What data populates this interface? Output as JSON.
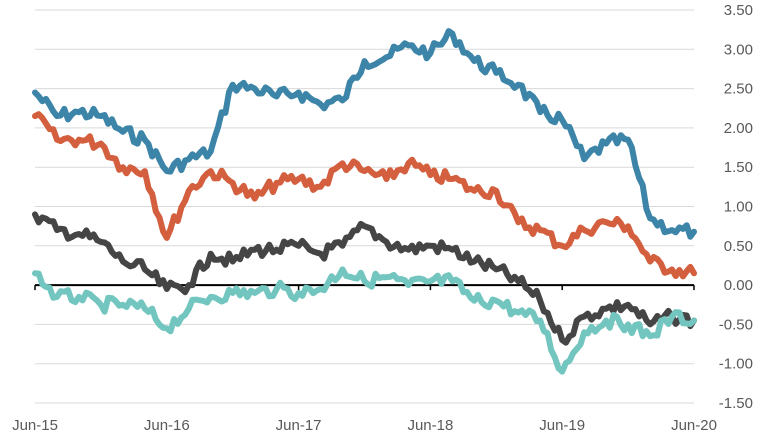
{
  "chart_data": {
    "type": "line",
    "title": "",
    "xlabel": "",
    "ylabel": "",
    "x_ticks": [
      "Jun-15",
      "Jun-16",
      "Jun-17",
      "Jun-18",
      "Jun-19",
      "Jun-20"
    ],
    "y_ticks": [
      "3.50",
      "3.00",
      "2.50",
      "2.00",
      "1.50",
      "1.00",
      "0.50",
      "0.00",
      "-0.50",
      "-1.00",
      "-1.50"
    ],
    "ylim": [
      -1.5,
      3.5
    ],
    "xlim": [
      "2015-06",
      "2020-06"
    ],
    "grid": "horizontal",
    "legend": "none",
    "x": [
      "2015-06",
      "2015-08",
      "2015-10",
      "2015-12",
      "2016-02",
      "2016-04",
      "2016-06",
      "2016-08",
      "2016-10",
      "2016-12",
      "2017-02",
      "2017-04",
      "2017-06",
      "2017-08",
      "2017-10",
      "2017-12",
      "2018-02",
      "2018-04",
      "2018-06",
      "2018-08",
      "2018-10",
      "2018-12",
      "2019-02",
      "2019-04",
      "2019-06",
      "2019-08",
      "2019-10",
      "2019-12",
      "2020-02",
      "2020-04",
      "2020-06"
    ],
    "series": [
      {
        "color": "#3d85a8",
        "values": [
          2.45,
          2.15,
          2.2,
          2.15,
          1.95,
          1.85,
          1.45,
          1.6,
          1.7,
          2.55,
          2.5,
          2.4,
          2.45,
          2.3,
          2.35,
          2.85,
          2.9,
          3.05,
          2.95,
          3.2,
          2.85,
          2.7,
          2.55,
          2.2,
          2.1,
          1.6,
          1.8,
          1.85,
          0.85,
          0.7,
          0.68
        ]
      },
      {
        "color": "#d45f3e",
        "values": [
          2.15,
          1.85,
          1.85,
          1.8,
          1.5,
          1.45,
          0.6,
          1.2,
          1.45,
          1.3,
          1.1,
          1.3,
          1.35,
          1.25,
          1.55,
          1.45,
          1.35,
          1.55,
          1.4,
          1.35,
          1.2,
          1.2,
          0.8,
          0.7,
          0.5,
          0.7,
          0.8,
          0.75,
          0.3,
          0.2,
          0.15
        ]
      },
      {
        "color": "#454545",
        "values": [
          0.9,
          0.7,
          0.65,
          0.55,
          0.3,
          0.2,
          -0.05,
          0.0,
          0.4,
          0.3,
          0.45,
          0.45,
          0.5,
          0.4,
          0.5,
          0.75,
          0.55,
          0.45,
          0.5,
          0.45,
          0.3,
          0.2,
          0.05,
          -0.2,
          -0.7,
          -0.4,
          -0.3,
          -0.25,
          -0.5,
          -0.4,
          -0.45
        ]
      },
      {
        "color": "#73c6c0",
        "values": [
          0.15,
          -0.15,
          -0.15,
          -0.25,
          -0.25,
          -0.3,
          -0.55,
          -0.3,
          -0.15,
          -0.1,
          -0.1,
          -0.05,
          -0.1,
          -0.05,
          0.2,
          0.05,
          0.1,
          0.0,
          0.05,
          0.05,
          -0.2,
          -0.2,
          -0.35,
          -0.45,
          -1.1,
          -0.6,
          -0.45,
          -0.5,
          -0.65,
          -0.4,
          -0.45
        ]
      }
    ]
  }
}
